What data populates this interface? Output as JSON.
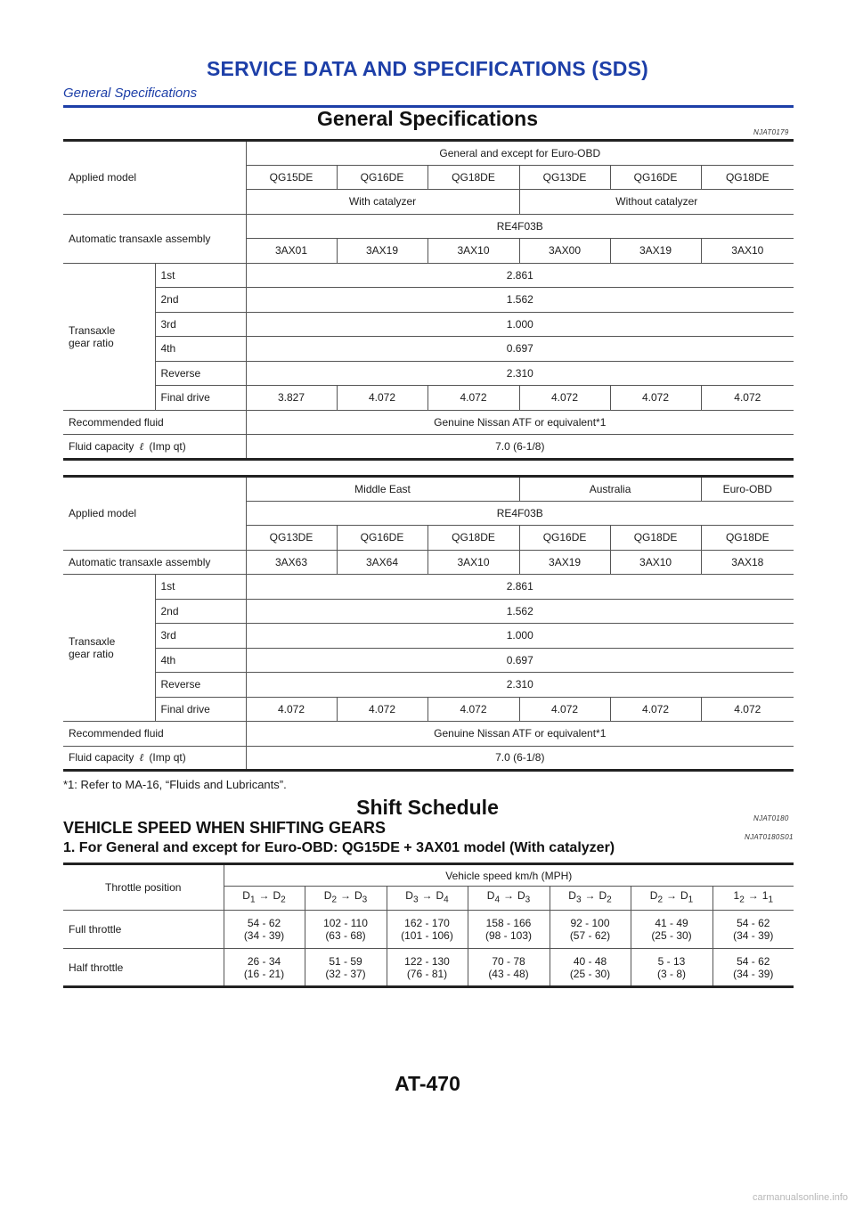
{
  "header": {
    "title": "SERVICE DATA AND SPECIFICATIONS (SDS)",
    "subtitle": "General Specifications"
  },
  "section1": {
    "title": "General Specifications",
    "code": "NJAT0179"
  },
  "table1": {
    "applied_model_label": "Applied model",
    "region": "General and except for Euro-OBD",
    "engines": [
      "QG15DE",
      "QG16DE",
      "QG18DE",
      "QG13DE",
      "QG16DE",
      "QG18DE"
    ],
    "with_catalyzer": "With catalyzer",
    "without_catalyzer": "Without catalyzer",
    "assembly_label": "Automatic transaxle assembly",
    "assembly_model": "RE4F03B",
    "assembly_codes": [
      "3AX01",
      "3AX19",
      "3AX10",
      "3AX00",
      "3AX19",
      "3AX10"
    ],
    "gear_ratio_label": "Transaxle gear ratio",
    "gears": [
      {
        "name": "1st",
        "value": "2.861"
      },
      {
        "name": "2nd",
        "value": "1.562"
      },
      {
        "name": "3rd",
        "value": "1.000"
      },
      {
        "name": "4th",
        "value": "0.697"
      },
      {
        "name": "Reverse",
        "value": "2.310"
      }
    ],
    "final_drive_label": "Final drive",
    "final_drive": [
      "3.827",
      "4.072",
      "4.072",
      "4.072",
      "4.072",
      "4.072"
    ],
    "fluid_label": "Recommended fluid",
    "fluid_value": "Genuine Nissan ATF or equivalent*1",
    "capacity_label": "Fluid capacity",
    "capacity_symbol": "ℓ",
    "capacity_unit": "(Imp qt)",
    "capacity_value": "7.0 (6-1/8)"
  },
  "table2": {
    "applied_model_label": "Applied model",
    "regions": [
      "Middle East",
      "Australia",
      "Euro-OBD"
    ],
    "assembly_model": "RE4F03B",
    "engines": [
      "QG13DE",
      "QG16DE",
      "QG18DE",
      "QG16DE",
      "QG18DE",
      "QG18DE"
    ],
    "assembly_label": "Automatic transaxle assembly",
    "assembly_codes": [
      "3AX63",
      "3AX64",
      "3AX10",
      "3AX19",
      "3AX10",
      "3AX18"
    ],
    "gear_ratio_label": "Transaxle gear ratio",
    "gears": [
      {
        "name": "1st",
        "value": "2.861"
      },
      {
        "name": "2nd",
        "value": "1.562"
      },
      {
        "name": "3rd",
        "value": "1.000"
      },
      {
        "name": "4th",
        "value": "0.697"
      },
      {
        "name": "Reverse",
        "value": "2.310"
      }
    ],
    "final_drive_label": "Final drive",
    "final_drive": [
      "4.072",
      "4.072",
      "4.072",
      "4.072",
      "4.072",
      "4.072"
    ],
    "fluid_label": "Recommended fluid",
    "fluid_value": "Genuine Nissan ATF or equivalent*1",
    "capacity_label": "Fluid capacity",
    "capacity_symbol": "ℓ",
    "capacity_unit": "(Imp qt)",
    "capacity_value": "7.0 (6-1/8)"
  },
  "footnote": "*1: Refer to MA-16, “Fluids and Lubricants”.",
  "section2": {
    "title": "Shift Schedule",
    "code": "NJAT0180"
  },
  "subsection": {
    "title": "VEHICLE SPEED WHEN SHIFTING GEARS",
    "code": "NJAT0180S01"
  },
  "subsub": {
    "title": "1. For General and except for Euro-OBD: QG15DE + 3AX01 model (With catalyzer)"
  },
  "shift_table": {
    "throttle_label": "Throttle position",
    "speed_label": "Vehicle speed km/h (MPH)",
    "shifts": [
      {
        "a": "D",
        "as": "1",
        "b": "D",
        "bs": "2"
      },
      {
        "a": "D",
        "as": "2",
        "b": "D",
        "bs": "3"
      },
      {
        "a": "D",
        "as": "3",
        "b": "D",
        "bs": "4"
      },
      {
        "a": "D",
        "as": "4",
        "b": "D",
        "bs": "3"
      },
      {
        "a": "D",
        "as": "3",
        "b": "D",
        "bs": "2"
      },
      {
        "a": "D",
        "as": "2",
        "b": "D",
        "bs": "1"
      },
      {
        "a": "1",
        "as": "2",
        "b": "1",
        "bs": "1"
      }
    ],
    "arrow": "→",
    "rows": [
      {
        "label": "Full throttle",
        "cells": [
          [
            "54 - 62",
            "(34 - 39)"
          ],
          [
            "102 - 110",
            "(63 - 68)"
          ],
          [
            "162 - 170",
            "(101 - 106)"
          ],
          [
            "158 - 166",
            "(98 - 103)"
          ],
          [
            "92 - 100",
            "(57 - 62)"
          ],
          [
            "41 - 49",
            "(25 - 30)"
          ],
          [
            "54 - 62",
            "(34 - 39)"
          ]
        ]
      },
      {
        "label": "Half throttle",
        "cells": [
          [
            "26 - 34",
            "(16 - 21)"
          ],
          [
            "51 - 59",
            "(32 - 37)"
          ],
          [
            "122 - 130",
            "(76 - 81)"
          ],
          [
            "70 - 78",
            "(43 - 48)"
          ],
          [
            "40 - 48",
            "(25 - 30)"
          ],
          [
            "5 - 13",
            "(3 - 8)"
          ],
          [
            "54 - 62",
            "(34 - 39)"
          ]
        ]
      }
    ]
  },
  "page_number": "AT-470",
  "watermark": "carmanualsonline.info"
}
